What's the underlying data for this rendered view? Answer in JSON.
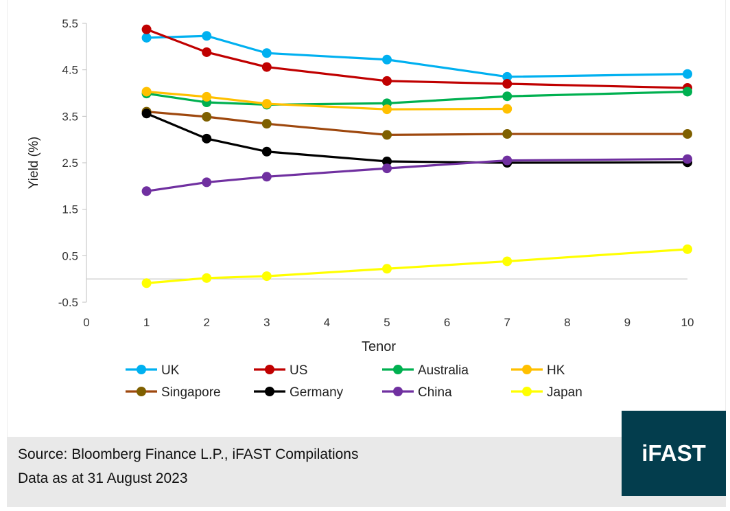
{
  "chart_data": {
    "type": "line",
    "title": "",
    "xlabel": "Tenor",
    "ylabel": "Yield (%)",
    "xlim": [
      0,
      10
    ],
    "ylim": [
      -0.5,
      5.5
    ],
    "x_ticks": [
      0,
      1,
      2,
      3,
      4,
      5,
      6,
      7,
      8,
      9,
      10
    ],
    "y_ticks": [
      -0.5,
      0.5,
      1.5,
      2.5,
      3.5,
      4.5,
      5.5
    ],
    "y_tick_labels": [
      "-0.5",
      "0.5",
      "1.5",
      "2.5",
      "3.5",
      "4.5",
      "5.5"
    ],
    "grid": false,
    "legend_placement": "bottom",
    "series": [
      {
        "name": "UK",
        "color": "#00b0f0",
        "marker_color": "#00b0f0",
        "x": [
          1,
          2,
          3,
          5,
          7,
          10
        ],
        "values": [
          5.19,
          5.23,
          4.86,
          4.72,
          4.35,
          4.41
        ]
      },
      {
        "name": "US",
        "color": "#c00000",
        "marker_color": "#c00000",
        "x": [
          1,
          2,
          3,
          5,
          7,
          10
        ],
        "values": [
          5.37,
          4.88,
          4.56,
          4.26,
          4.2,
          4.11
        ]
      },
      {
        "name": "Australia",
        "color": "#00b050",
        "marker_color": "#00b050",
        "x": [
          1,
          2,
          3,
          5,
          7,
          10
        ],
        "values": [
          3.99,
          3.8,
          3.75,
          3.78,
          3.93,
          4.03
        ]
      },
      {
        "name": "HK",
        "color": "#ffc000",
        "marker_color": "#ffc000",
        "x": [
          1,
          2,
          3,
          5,
          7
        ],
        "values": [
          4.03,
          3.92,
          3.77,
          3.65,
          3.66
        ]
      },
      {
        "name": "Singapore",
        "color": "#9e480e",
        "marker_color": "#7f6000",
        "x": [
          1,
          2,
          3,
          5,
          7,
          10
        ],
        "values": [
          3.6,
          3.49,
          3.34,
          3.1,
          3.12,
          3.12
        ]
      },
      {
        "name": "Germany",
        "color": "#000000",
        "marker_color": "#000000",
        "x": [
          1,
          2,
          3,
          5,
          7,
          10
        ],
        "values": [
          3.56,
          3.02,
          2.74,
          2.53,
          2.5,
          2.51
        ]
      },
      {
        "name": "China",
        "color": "#7030a0",
        "marker_color": "#7030a0",
        "x": [
          1,
          2,
          3,
          5,
          7,
          10
        ],
        "values": [
          1.89,
          2.08,
          2.2,
          2.38,
          2.55,
          2.58
        ]
      },
      {
        "name": "Japan",
        "color": "#ffff00",
        "marker_color": "#ffff00",
        "x": [
          1,
          2,
          3,
          5,
          7,
          10
        ],
        "values": [
          -0.09,
          0.02,
          0.06,
          0.22,
          0.38,
          0.64
        ]
      }
    ]
  },
  "footer": {
    "source": "Source: Bloomberg Finance L.P., iFAST Compilations",
    "date": "Data as at 31 August 2023",
    "logo": "iFAST"
  }
}
